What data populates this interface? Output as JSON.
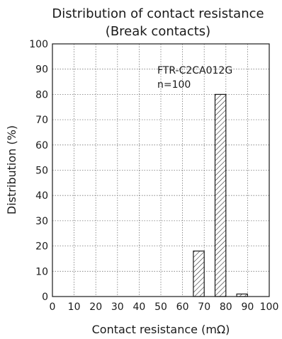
{
  "chart_data": {
    "type": "bar",
    "title_line1": "Distribution of contact resistance",
    "title_line2": "(Break contacts)",
    "xlabel": "Contact resistance (mΩ)",
    "ylabel": "Distribution (%)",
    "annotation_line1": "FTR-C2CA012G",
    "annotation_line2": "n=100",
    "xlim": [
      0,
      100
    ],
    "ylim": [
      0,
      100
    ],
    "xticks": [
      0,
      10,
      20,
      30,
      40,
      50,
      60,
      70,
      80,
      90,
      100
    ],
    "yticks": [
      0,
      10,
      20,
      30,
      40,
      50,
      60,
      70,
      80,
      90,
      100
    ],
    "grid": true,
    "bar_width": 5,
    "bins": [
      {
        "center": 67.5,
        "value": 18
      },
      {
        "center": 77.5,
        "value": 80
      },
      {
        "center": 87.5,
        "value": 1
      }
    ],
    "bar_style": "diagonal-hatch"
  }
}
